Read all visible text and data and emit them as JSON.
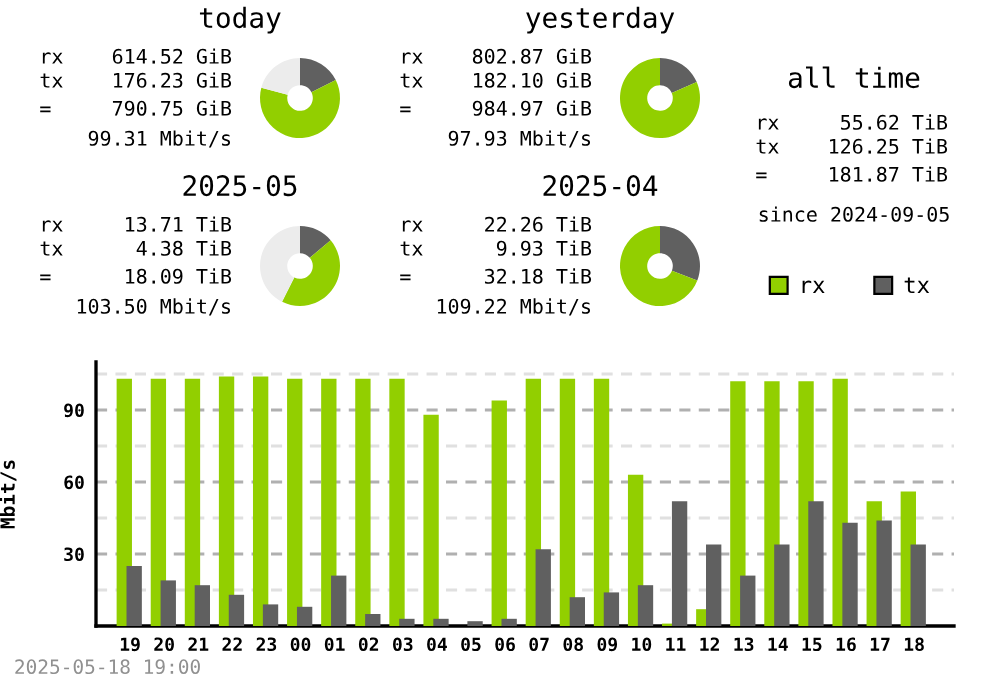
{
  "chart_data": [
    {
      "type": "donut",
      "title": "today",
      "categories": [
        null,
        null,
        null
      ],
      "values": [
        17.6,
        61.5,
        20.9
      ],
      "colors": [
        "#606060",
        "#92cf00",
        "#ececec"
      ],
      "annotations": [
        "rx    614.52 GiB",
        "tx    176.23 GiB",
        "=     790.75 GiB",
        "99.31 Mbit/s"
      ]
    },
    {
      "type": "donut",
      "title": "yesterday",
      "categories": [
        null,
        null
      ],
      "values": [
        18.5,
        81.5
      ],
      "colors": [
        "#606060",
        "#92cf00"
      ],
      "annotations": [
        "rx    802.87 GiB",
        "tx    182.10 GiB",
        "=     984.97 GiB",
        "97.93 Mbit/s"
      ]
    },
    {
      "type": "other",
      "title": "all time",
      "annotations": [
        "rx     55.62 TiB",
        "tx    126.25 TiB",
        "=     181.87 TiB",
        "since 2024-09-05"
      ]
    },
    {
      "type": "donut",
      "title": "2025-05",
      "categories": [
        null,
        null,
        null
      ],
      "values": [
        13.9,
        43.5,
        42.6
      ],
      "colors": [
        "#606060",
        "#92cf00",
        "#ececec"
      ],
      "annotations": [
        "rx     13.71 TiB",
        "tx      4.38 TiB",
        "=      18.09 TiB",
        "103.50 Mbit/s"
      ]
    },
    {
      "type": "donut",
      "title": "2025-04",
      "categories": [
        null,
        null
      ],
      "values": [
        30.9,
        69.1
      ],
      "colors": [
        "#606060",
        "#92cf00"
      ],
      "annotations": [
        "rx     22.26 TiB",
        "tx      9.93 TiB",
        "=      32.18 TiB",
        "109.22 Mbit/s"
      ]
    },
    {
      "type": "bar",
      "ylabel": "Mbit/s",
      "categories": [
        "19",
        "20",
        "21",
        "22",
        "23",
        "00",
        "01",
        "02",
        "03",
        "04",
        "05",
        "06",
        "07",
        "08",
        "09",
        "10",
        "11",
        "12",
        "13",
        "14",
        "15",
        "16",
        "17",
        "18"
      ],
      "series": [
        {
          "name": "rx",
          "color": "#92cf00",
          "values": [
            103,
            103,
            103,
            104,
            104,
            103,
            103,
            103,
            103,
            88,
            0,
            94,
            103,
            103,
            103,
            63,
            1,
            7,
            102,
            102,
            102,
            103,
            52,
            56
          ]
        },
        {
          "name": "tx",
          "color": "#606060",
          "values": [
            25,
            19,
            17,
            13,
            9,
            8,
            21,
            5,
            3,
            3,
            2,
            3,
            32,
            12,
            14,
            17,
            52,
            34,
            21,
            34,
            52,
            43,
            44,
            34
          ]
        }
      ],
      "ylim": [
        0,
        110
      ],
      "yticks": [
        {
          "value": 15,
          "label": null
        },
        30,
        {
          "value": 45,
          "label": null
        },
        60,
        {
          "value": 75,
          "label": null
        },
        90,
        {
          "value": 105,
          "label": null
        }
      ],
      "grid": "y",
      "legend": "top right",
      "annotations": [
        "2025-05-18 19:00"
      ]
    }
  ]
}
